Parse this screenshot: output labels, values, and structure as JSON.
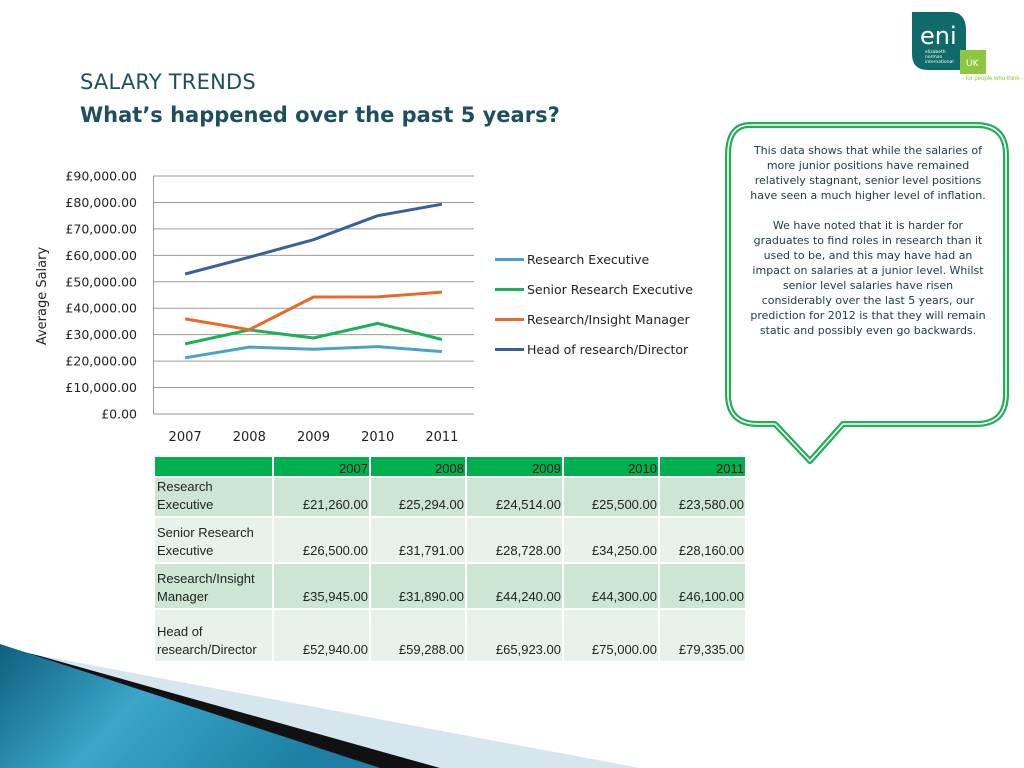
{
  "logo": {
    "brand": "eni",
    "subtext": [
      "elizabeth",
      "norman",
      "international"
    ],
    "badge": "UK",
    "tagline": "- for people who think -",
    "colors": {
      "primary": "#0f6b6b",
      "badge": "#8dc63f"
    }
  },
  "header": {
    "title": "SALARY TRENDS",
    "subtitle": "What’s happened over the past 5 years?"
  },
  "chart_data": {
    "type": "line",
    "title": "",
    "xlabel": "",
    "ylabel": "Average Salary",
    "x": [
      "2007",
      "2008",
      "2009",
      "2010",
      "2011"
    ],
    "ylim": [
      0,
      90000
    ],
    "yticks": [
      "£0.00",
      "£10,000.00",
      "£20,000.00",
      "£30,000.00",
      "£40,000.00",
      "£50,000.00",
      "£60,000.00",
      "£70,000.00",
      "£80,000.00",
      "£90,000.00"
    ],
    "grid": true,
    "legend_position": "right",
    "series": [
      {
        "name": "Research Executive",
        "color": "#4aa3c4",
        "values": [
          21260,
          25294,
          24514,
          25500,
          23580
        ]
      },
      {
        "name": "Senior Research Executive",
        "color": "#1fae5a",
        "values": [
          26500,
          31791,
          28728,
          34250,
          28160
        ]
      },
      {
        "name": "Research/Insight Manager",
        "color": "#e8692a",
        "values": [
          35945,
          31890,
          44240,
          44300,
          46100
        ]
      },
      {
        "name": "Head of research/Director",
        "color": "#3b5f9a",
        "values": [
          52940,
          59288,
          65923,
          75000,
          79335
        ]
      }
    ]
  },
  "callout": {
    "paragraphs": [
      "This data shows that while the salaries of more junior positions have remained relatively stagnant, senior level positions have seen a much higher level of inflation.",
      "We have noted that it is harder for graduates to find roles in research than it used to be, and this may have had an impact on salaries at a junior level. Whilst senior level salaries have risen considerably over the last 5 years, our prediction for 2012 is that they will remain static and possibly even go backwards."
    ],
    "border_color": "#1fae5a"
  },
  "table": {
    "header": [
      "",
      "2007",
      "2008",
      "2009",
      "2010",
      "2011"
    ],
    "rows": [
      {
        "label_lines": [
          "Research",
          "Executive"
        ],
        "values": [
          "£21,260.00",
          "£25,294.00",
          "£24,514.00",
          "£25,500.00",
          "£23,580.00"
        ]
      },
      {
        "label_lines": [
          "Senior Research",
          "Executive"
        ],
        "values": [
          "£26,500.00",
          "£31,791.00",
          "£28,728.00",
          "£34,250.00",
          "£28,160.00"
        ]
      },
      {
        "label_lines": [
          "Research/Insight",
          "Manager"
        ],
        "values": [
          "£35,945.00",
          "£31,890.00",
          "£44,240.00",
          "£44,300.00",
          "£46,100.00"
        ]
      },
      {
        "label_lines": [
          "Head of",
          "research/Director"
        ],
        "values": [
          "£52,940.00",
          "£59,288.00",
          "£65,923.00",
          "£75,000.00",
          "£79,335.00"
        ]
      }
    ],
    "colors": {
      "header": "#00b050",
      "row_odd": "#cde6d3",
      "row_even": "#e8f2ea"
    }
  }
}
